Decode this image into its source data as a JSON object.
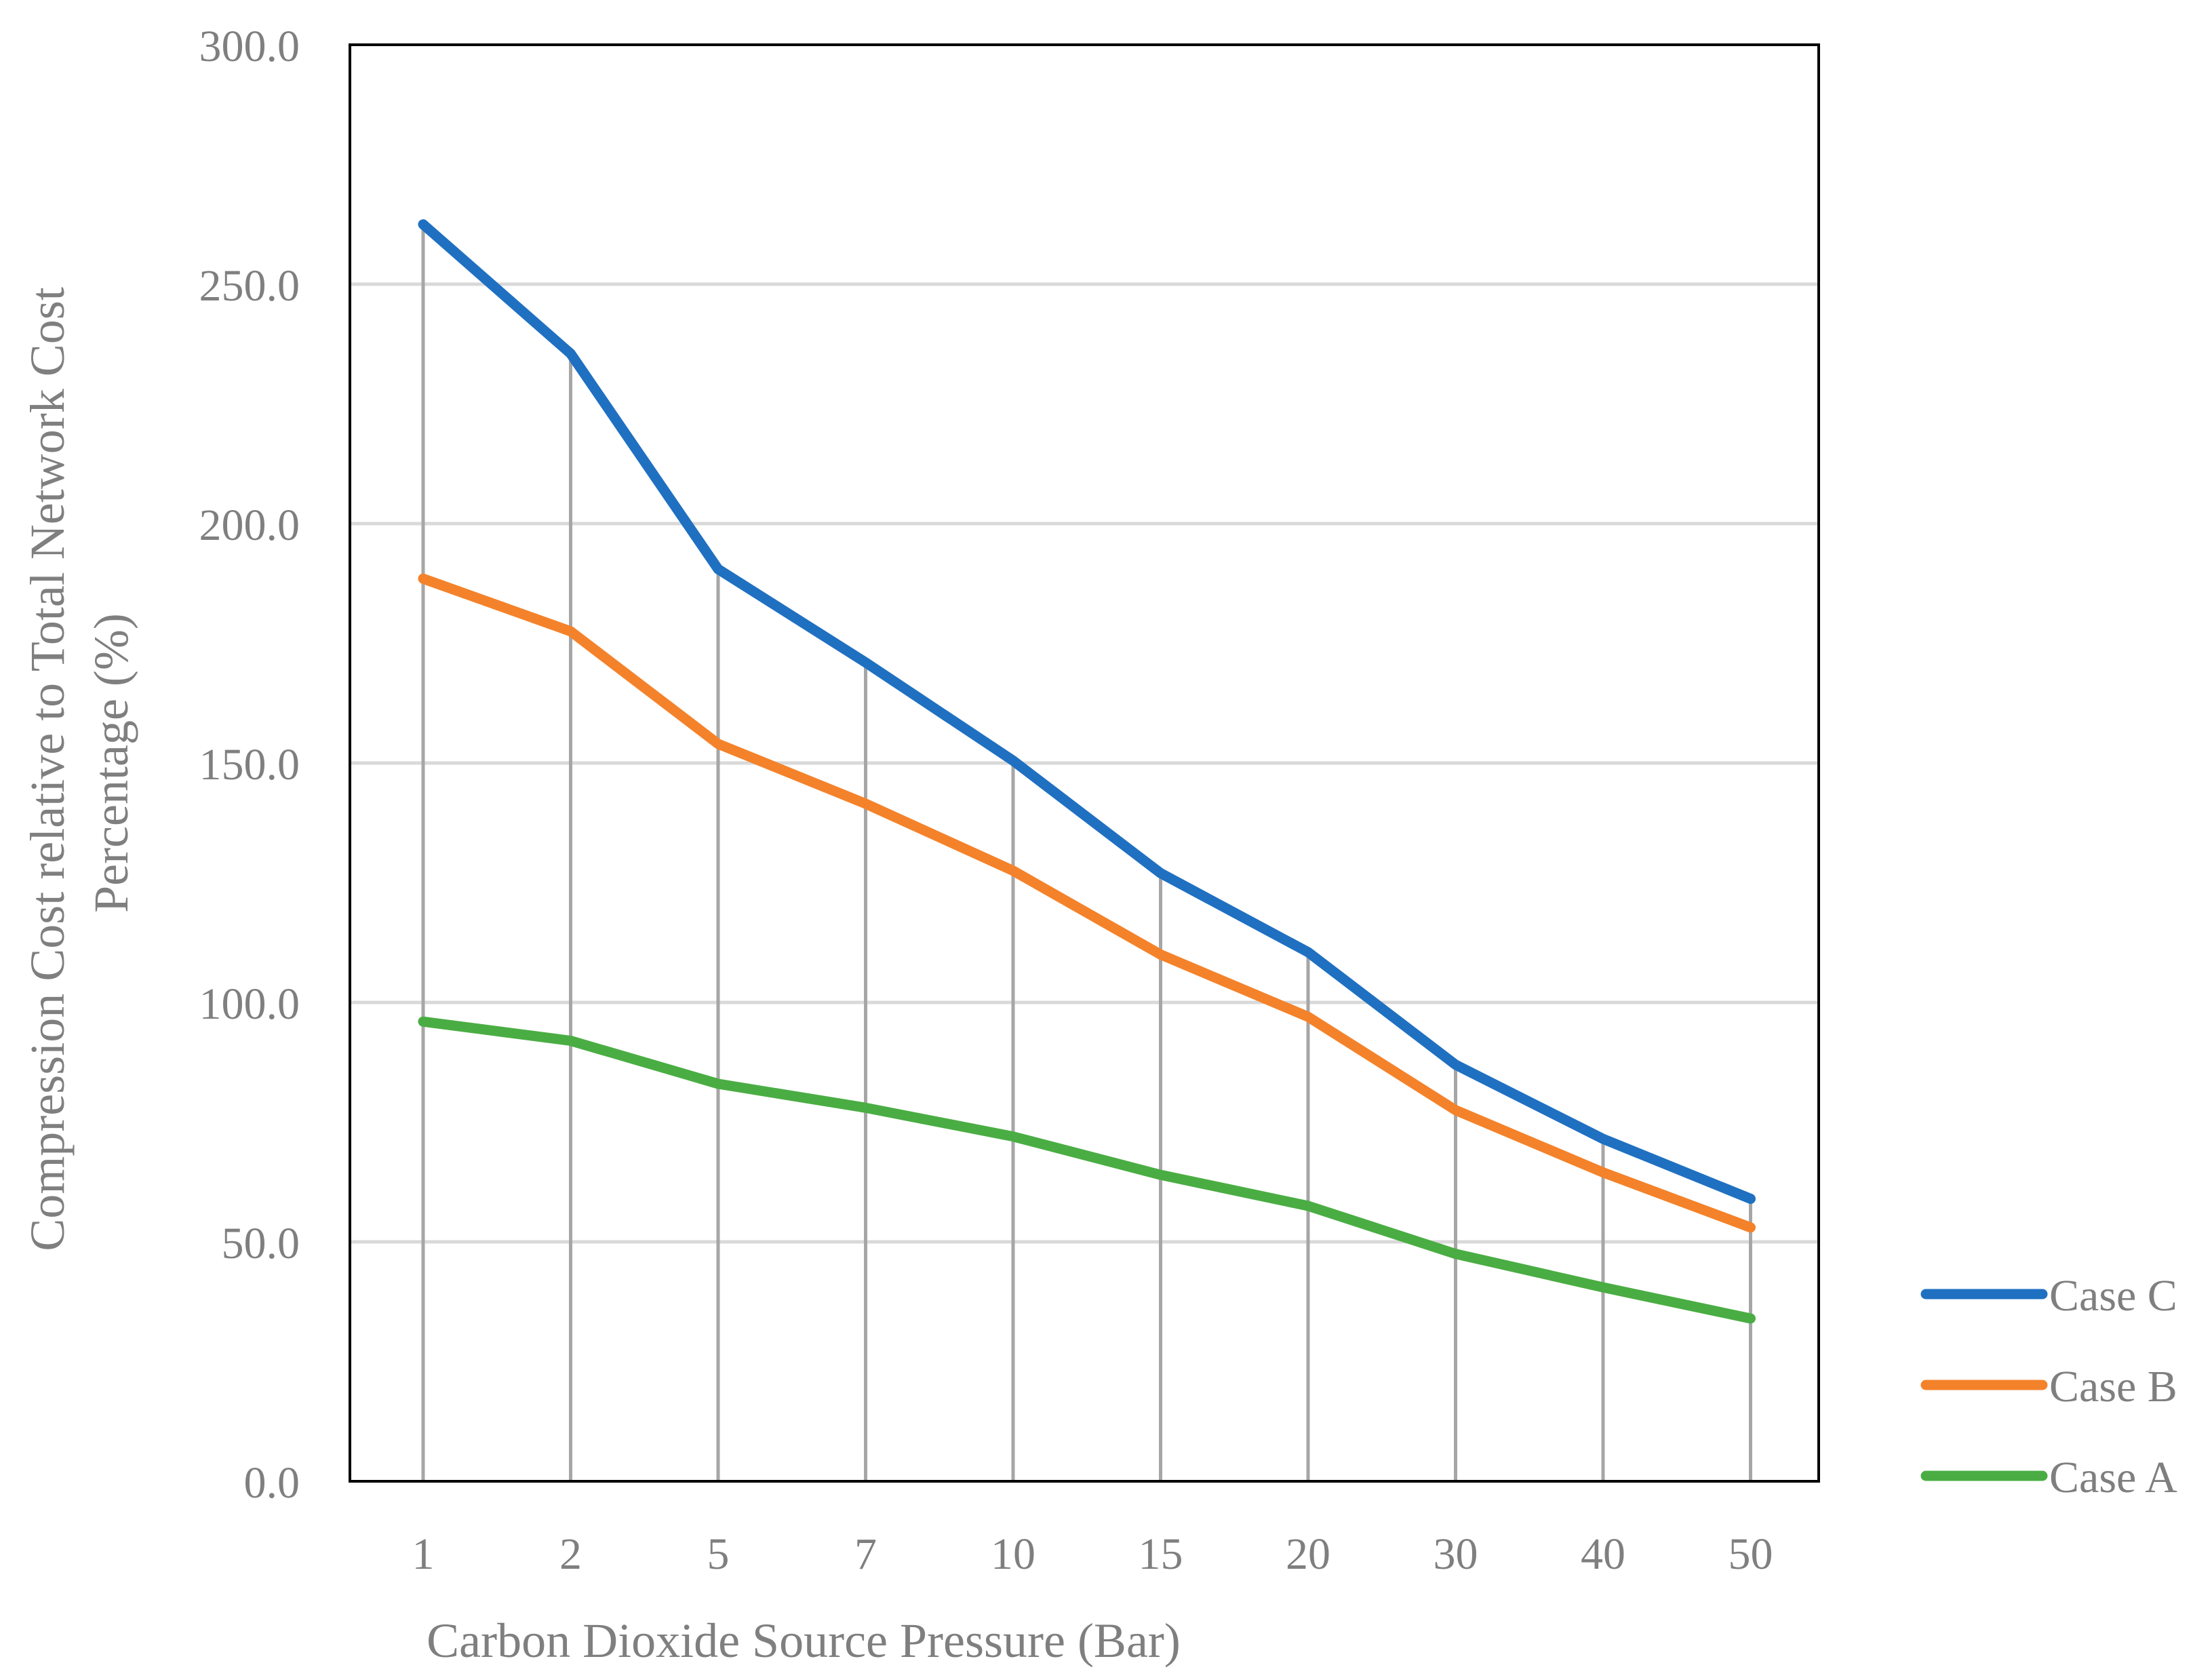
{
  "chart_data": {
    "type": "line",
    "title": "",
    "xlabel": "Carbon Dioxide Source Pressure  (Bar)",
    "ylabel_lines": [
      "Compression Cost relative to Total Network Cost",
      "Percentage (%)"
    ],
    "categories": [
      "1",
      "2",
      "5",
      "7",
      "10",
      "15",
      "20",
      "30",
      "40",
      "50"
    ],
    "ylim": [
      0,
      300
    ],
    "yticks": [
      "0.0",
      "50.0",
      "100.0",
      "150.0",
      "200.0",
      "250.0",
      "300.0"
    ],
    "grid": true,
    "drop_lines": true,
    "legend_position": "bottom-right",
    "series": [
      {
        "name": "Case C",
        "color": "#1f70c1",
        "values": [
          262.5,
          235.5,
          190.5,
          171.0,
          150.5,
          127.0,
          110.5,
          87.0,
          71.5,
          59.0
        ]
      },
      {
        "name": "Case B",
        "color": "#f4822a",
        "values": [
          188.5,
          177.5,
          154.0,
          141.5,
          127.5,
          110.0,
          97.0,
          77.5,
          64.5,
          53.0
        ]
      },
      {
        "name": "Case A",
        "color": "#4aad43",
        "values": [
          96.0,
          92.0,
          83.0,
          78.0,
          72.0,
          64.0,
          57.5,
          47.5,
          40.5,
          34.0
        ]
      }
    ]
  }
}
